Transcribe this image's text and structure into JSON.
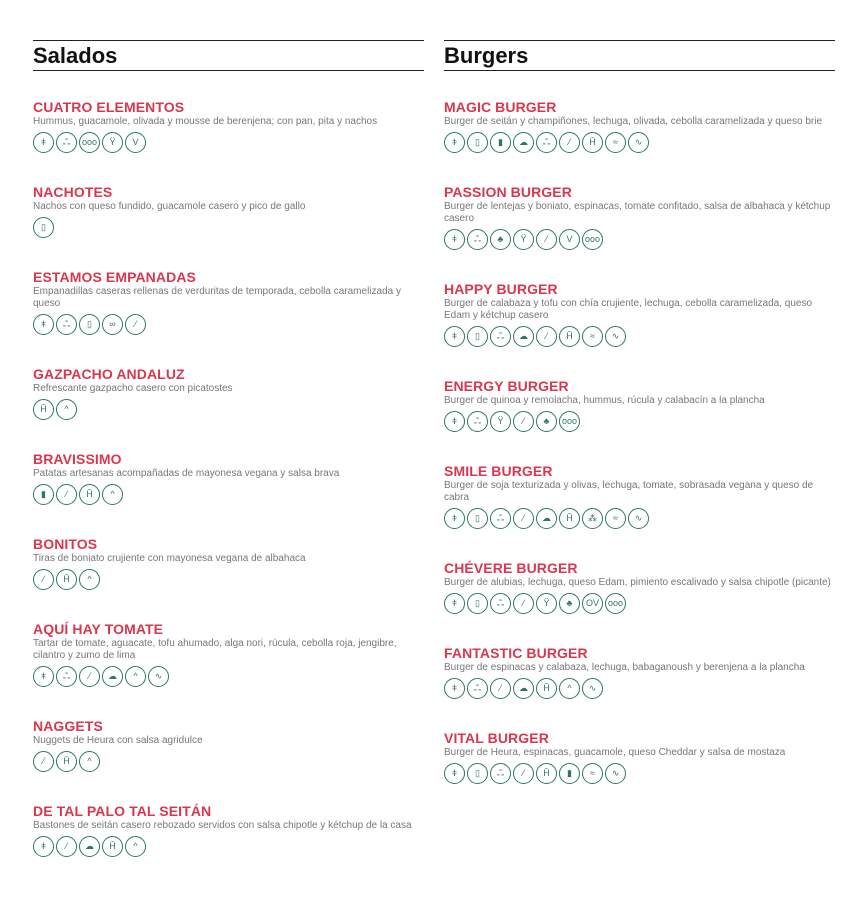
{
  "accent_color": "#d9374f",
  "icon_color": "#2c7a5a",
  "sections": [
    {
      "title": "Salados",
      "items": [
        {
          "name": "CUATRO ELEMENTOS",
          "desc": "Hummus, guacamole, olivada y mousse de berenjena; con pan, pita y nachos",
          "icons": [
            "wheat-icon",
            "leaves-icon",
            "sesame-icon",
            "glass-icon",
            "v-icon"
          ]
        },
        {
          "name": "NACHOTES",
          "desc": "Nachos con queso fundido, guacamole casero y pico de gallo",
          "icons": [
            "milk-icon"
          ]
        },
        {
          "name": "ESTAMOS EMPANADAS",
          "desc": "Empanadillas caseras rellenas de verduritas de temporada, cebolla caramelizada y queso",
          "icons": [
            "wheat-icon",
            "leaves-icon",
            "milk-icon",
            "nut-icon",
            "pod-icon"
          ]
        },
        {
          "name": "GAZPACHO ANDALUZ",
          "desc": "Refrescante gazpacho casero con picatostes",
          "icons": [
            "cup-icon",
            "face-icon"
          ]
        },
        {
          "name": "BRAVISSIMO",
          "desc": "Patatas artesanas acompañadas de mayonesa vegana y salsa brava",
          "icons": [
            "bottle-icon",
            "pod-icon",
            "cup-icon",
            "face-icon"
          ]
        },
        {
          "name": "BONITOS",
          "desc": "Tiras de boniato crujiente con mayonesa vegana de albahaca",
          "icons": [
            "pod-icon",
            "cup-icon",
            "face-icon"
          ]
        },
        {
          "name": "AQUÍ HAY TOMATE",
          "desc": "Tartar de tomate, aguacate, tofu ahumado, alga nori, rúcula, cebolla roja, jengibre, cilantro y zumo de lima",
          "icons": [
            "wheat-icon",
            "leaves-icon",
            "pod-icon",
            "cloud-icon",
            "face-icon",
            "salsa-icon"
          ]
        },
        {
          "name": "NAGGETS",
          "desc": "Nuggets de Heura con salsa agridulce",
          "icons": [
            "pod-icon",
            "cup-icon",
            "face-icon"
          ]
        },
        {
          "name": "DE TAL PALO TAL SEITÁN",
          "desc": "Bastones de seitán casero rebozado servidos con salsa chipotle y kétchup de la casa",
          "icons": [
            "wheat-icon",
            "pod-icon",
            "cloud-icon",
            "cup-icon",
            "face-icon"
          ]
        }
      ]
    },
    {
      "title": "Burgers",
      "items": [
        {
          "name": "MAGIC BURGER",
          "desc": "Burger de seitán y champiñones, lechuga, olivada, cebolla caramelizada y queso brie",
          "icons": [
            "wheat-icon",
            "milk-icon",
            "bottle-icon",
            "cloud-icon",
            "leaves-icon",
            "pod-icon",
            "cup-icon",
            "seeds-icon",
            "salsa-icon"
          ]
        },
        {
          "name": "PASSION BURGER",
          "desc": "Burger de lentejas y boniato, espinacas, tomate confitado, salsa de albahaca y kétchup casero",
          "icons": [
            "wheat-icon",
            "leaves-icon",
            "clover-icon",
            "glass-icon",
            "pod-icon",
            "v-icon",
            "sesame-icon"
          ]
        },
        {
          "name": "HAPPY BURGER",
          "desc": "Burger de calabaza y tofu con chía crujiente, lechuga, cebolla caramelizada, queso Edam y kétchup casero",
          "icons": [
            "wheat-icon",
            "milk-icon",
            "leaves-icon",
            "cloud-icon",
            "pod-icon",
            "cup-icon",
            "seeds-icon",
            "salsa-icon"
          ]
        },
        {
          "name": "ENERGY BURGER",
          "desc": "Burger de quinoa y remolacha, hummus, rúcula y calabacín a la plancha",
          "icons": [
            "wheat-icon",
            "leaves-icon",
            "glass-icon",
            "pod-icon",
            "clover-icon",
            "sesame-icon"
          ]
        },
        {
          "name": "SMILE BURGER",
          "desc": "Burger de soja texturizada y olivas, lechuga, tomate, sobrasada vegana y queso de cabra",
          "icons": [
            "wheat-icon",
            "milk-icon",
            "leaves-icon",
            "pod-icon",
            "cloud-icon",
            "cup-icon",
            "cluster-icon",
            "seeds-icon",
            "salsa-icon"
          ]
        },
        {
          "name": "CHÉVERE BURGER",
          "desc": "Burger de alubias, lechuga, queso Edam, pimiento escalivado y salsa chipotle (picante)",
          "icons": [
            "wheat-icon",
            "milk-icon",
            "leaves-icon",
            "pod-icon",
            "glass-icon",
            "clover-icon",
            "oval-icon",
            "sesame-icon"
          ]
        },
        {
          "name": "FANTASTIC BURGER",
          "desc": "Burger de espinacas y calabaza, lechuga, babaganoush y berenjena a la plancha",
          "icons": [
            "wheat-icon",
            "leaves-icon",
            "pod-icon",
            "cloud-icon",
            "cup-icon",
            "face-icon",
            "salsa-icon"
          ]
        },
        {
          "name": "VITAL BURGER",
          "desc": "Burger de Heura, espinacas, guacamole, queso Cheddar y salsa de mostaza",
          "icons": [
            "wheat-icon",
            "milk-icon",
            "leaves-icon",
            "pod-icon",
            "cup-icon",
            "bottle-icon",
            "seeds-icon",
            "salsa-icon"
          ]
        }
      ]
    }
  ]
}
